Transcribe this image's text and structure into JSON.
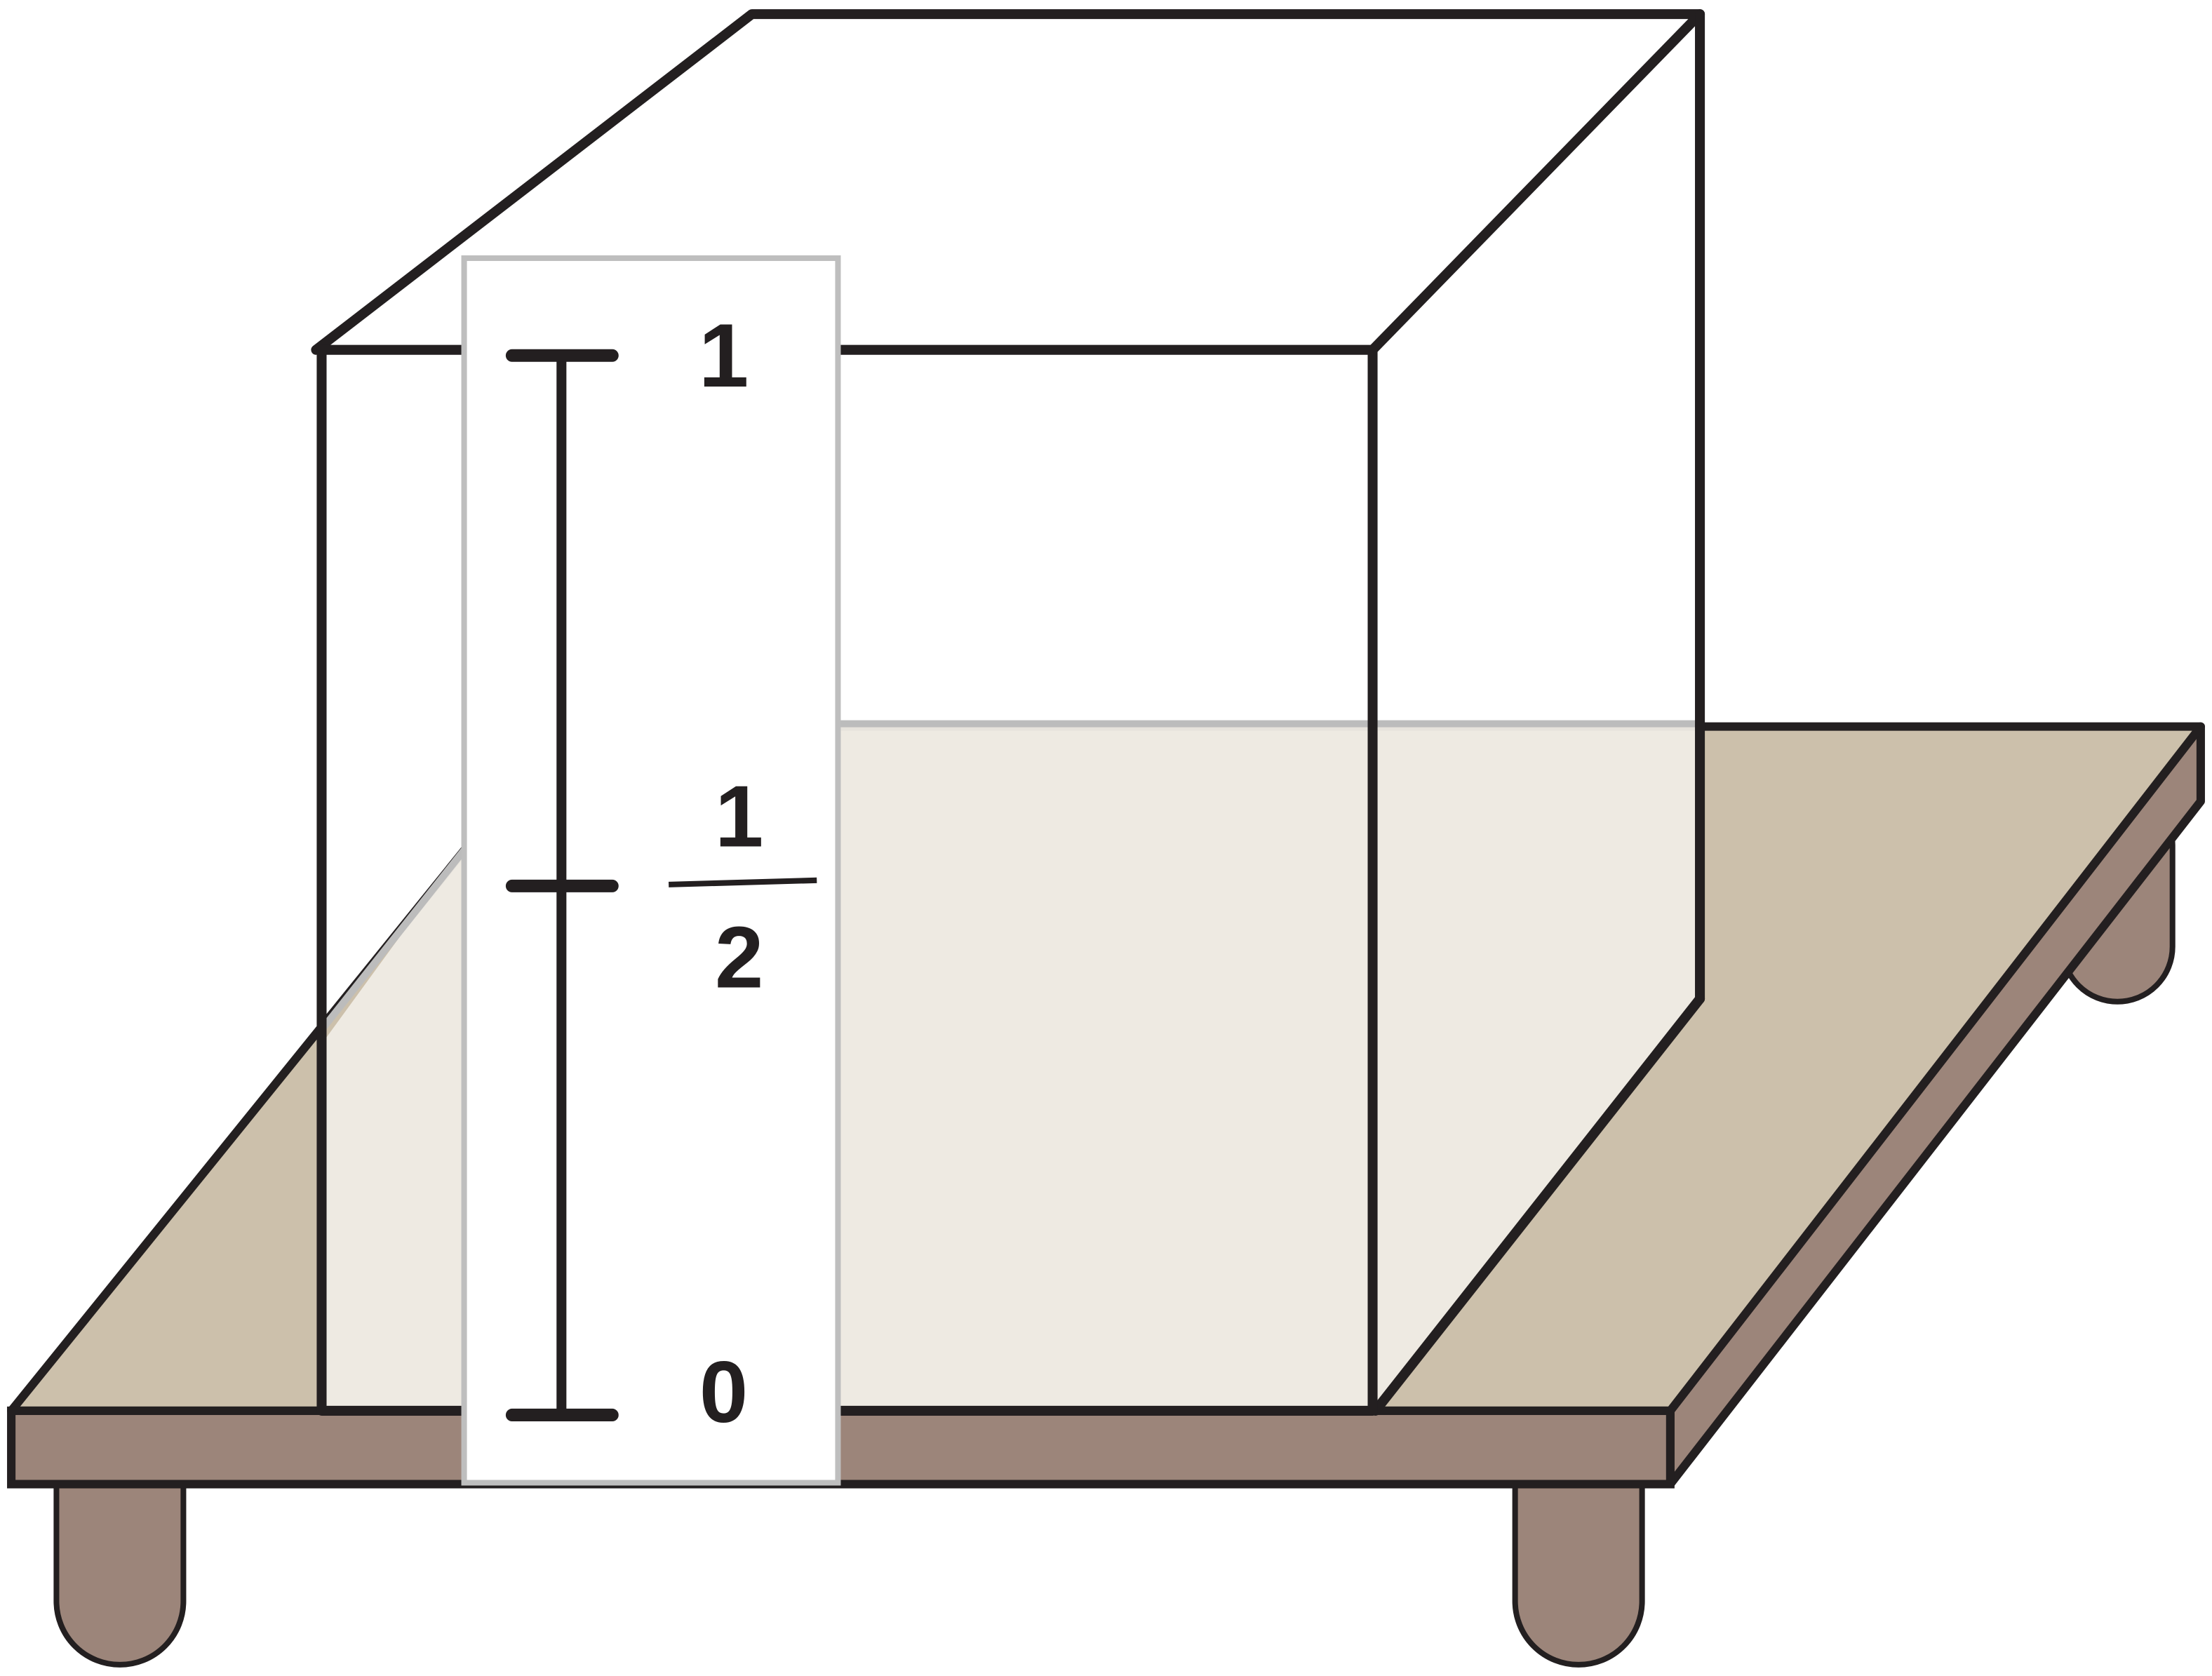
{
  "diagram": {
    "scale": {
      "top_label": "1",
      "middle_numerator": "1",
      "middle_denominator": "2",
      "bottom_label": "0"
    }
  },
  "colors": {
    "outline": "#231f20",
    "board_top": "#ccc0ab",
    "board_edge": "#9c857a",
    "liquid": "#efebe4",
    "ruler_border": "#bebebe",
    "liquid_surface_line": "#bcbcbc"
  }
}
